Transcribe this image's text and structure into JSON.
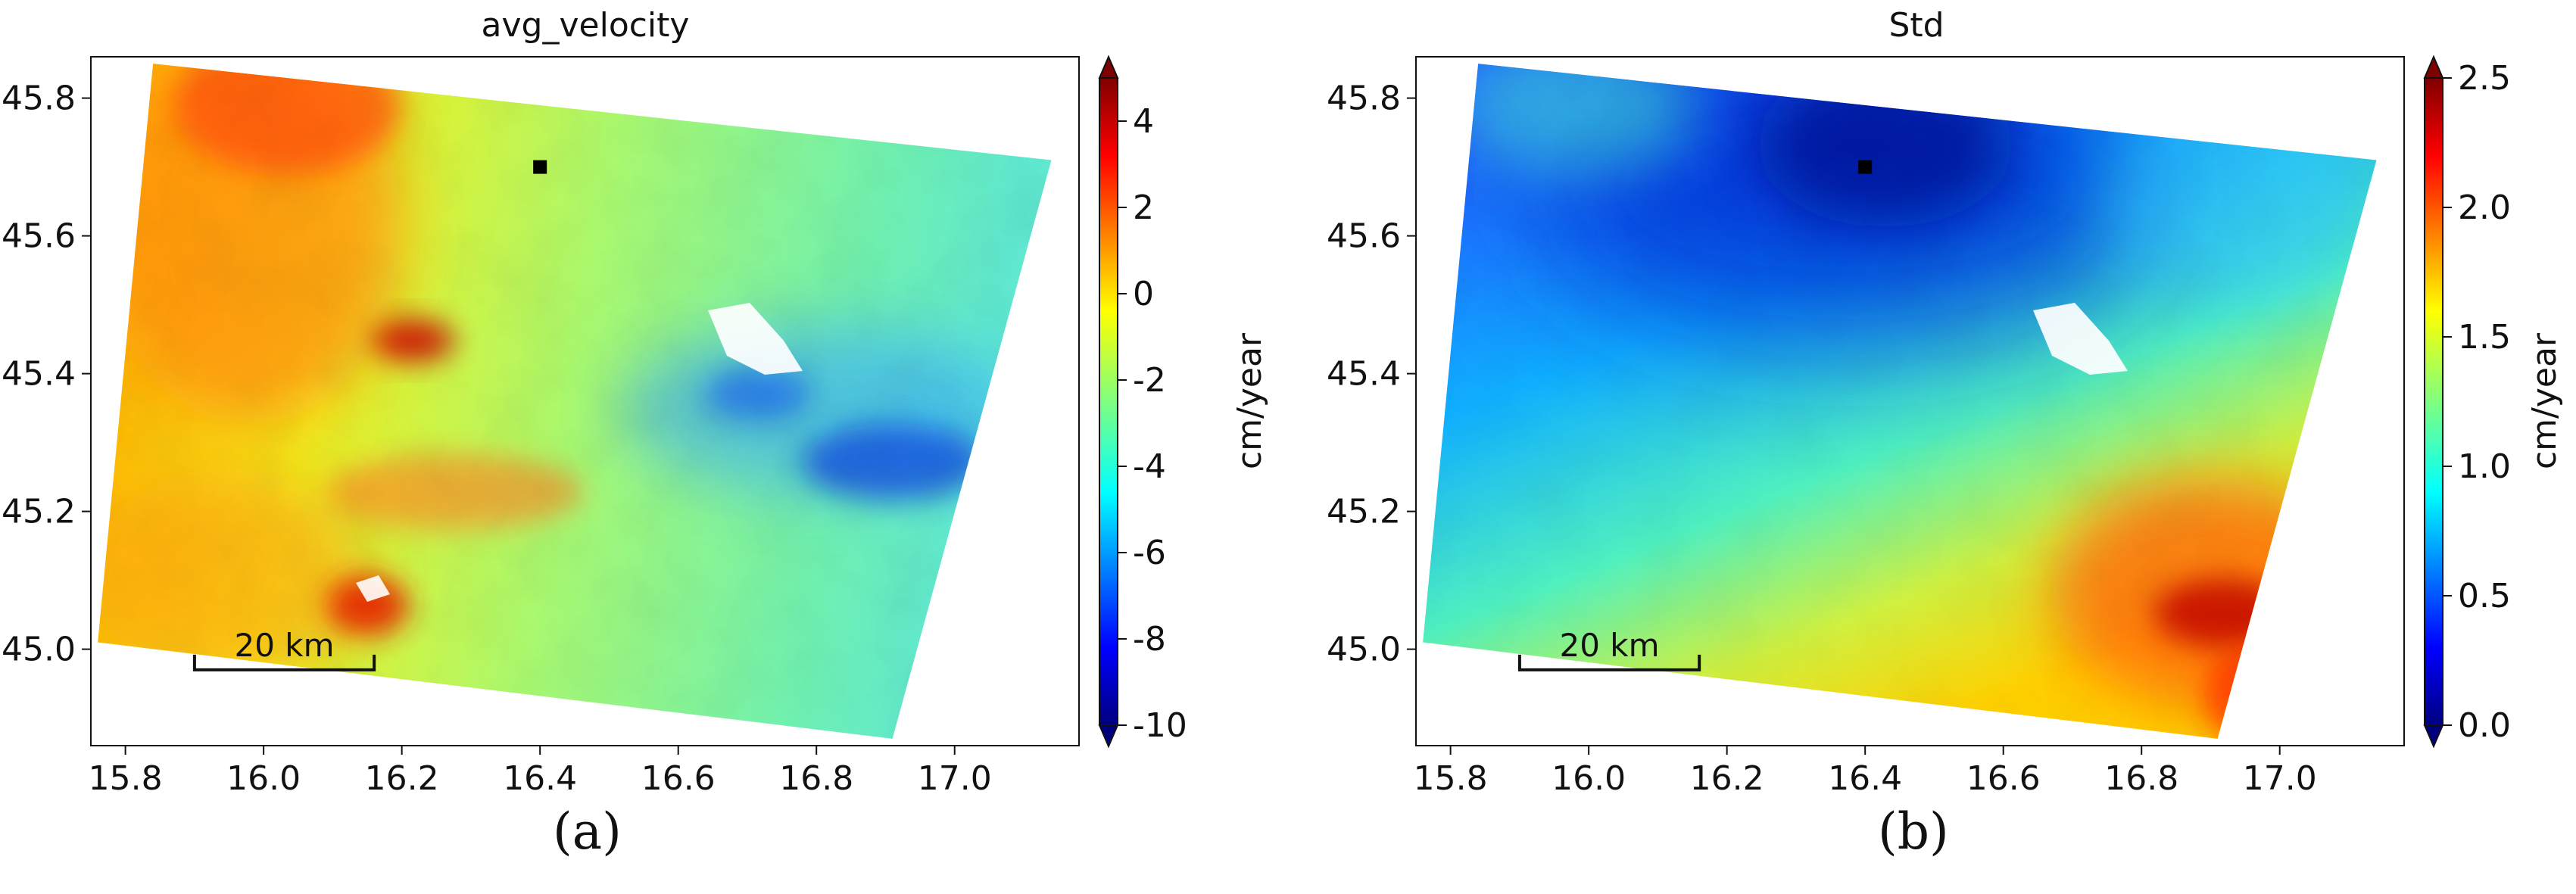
{
  "chart_data": [
    {
      "type": "heatmap",
      "title": "avg_velocity",
      "xlabel": "",
      "ylabel": "",
      "x_ticks": [
        15.8,
        16.0,
        16.2,
        16.4,
        16.6,
        16.8,
        17.0
      ],
      "y_ticks": [
        45.0,
        45.2,
        45.4,
        45.6,
        45.8
      ],
      "xlim": [
        15.75,
        17.18
      ],
      "ylim": [
        44.86,
        45.86
      ],
      "footprint_lonlat": [
        [
          15.84,
          45.85
        ],
        [
          17.14,
          45.71
        ],
        [
          16.91,
          44.87
        ],
        [
          15.76,
          45.01
        ]
      ],
      "colorbar": {
        "label": "cm/year",
        "min": -10,
        "max": 5,
        "ticks": [
          -10,
          -8,
          -6,
          -4,
          -2,
          0,
          2,
          4
        ],
        "colormap": "jet"
      },
      "marker": {
        "lon": 16.4,
        "lat": 45.7
      },
      "scale_bar": {
        "label": "20 km",
        "lon_start": 15.9,
        "lon_end": 16.16,
        "lat": 44.97
      },
      "caption": "(a)"
    },
    {
      "type": "heatmap",
      "title": "Std",
      "xlabel": "",
      "ylabel": "",
      "x_ticks": [
        15.8,
        16.0,
        16.2,
        16.4,
        16.6,
        16.8,
        17.0
      ],
      "y_ticks": [
        45.0,
        45.2,
        45.4,
        45.6,
        45.8
      ],
      "xlim": [
        15.75,
        17.18
      ],
      "ylim": [
        44.86,
        45.86
      ],
      "footprint_lonlat": [
        [
          15.84,
          45.85
        ],
        [
          17.14,
          45.71
        ],
        [
          16.91,
          44.87
        ],
        [
          15.76,
          45.01
        ]
      ],
      "colorbar": {
        "label": "cm/year",
        "min": 0.0,
        "max": 2.5,
        "ticks": [
          0.0,
          0.5,
          1.0,
          1.5,
          2.0,
          2.5
        ],
        "colormap": "jet"
      },
      "marker": {
        "lon": 16.4,
        "lat": 45.7
      },
      "scale_bar": {
        "label": "20 km",
        "lon_start": 15.9,
        "lon_end": 16.16,
        "lat": 44.97
      },
      "caption": "(b)"
    }
  ]
}
